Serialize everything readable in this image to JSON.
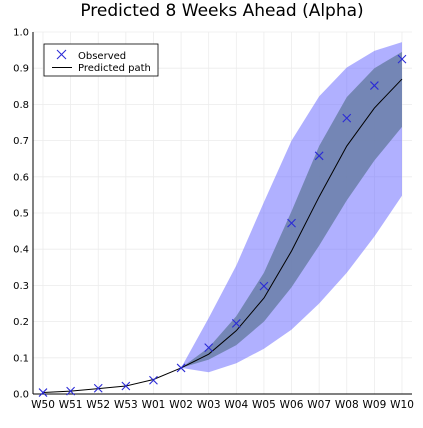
{
  "chart_data": {
    "type": "line",
    "title": "Predicted 8 Weeks Ahead (Alpha)",
    "xlabel": "",
    "ylabel": "",
    "categories": [
      "W50",
      "W51",
      "W52",
      "W53",
      "W01",
      "W02",
      "W03",
      "W04",
      "W05",
      "W06",
      "W07",
      "W08",
      "W09",
      "W10"
    ],
    "ylim": [
      0,
      1.0
    ],
    "yticks": [
      0.0,
      0.1,
      0.2,
      0.3,
      0.4,
      0.5,
      0.6,
      0.7,
      0.8,
      0.9,
      1.0
    ],
    "grid": true,
    "legend": "top-left",
    "legend_entries": [
      "Observed",
      "Predicted path"
    ],
    "series": [
      {
        "name": "Observed",
        "kind": "scatter",
        "marker": "x",
        "color": "#2b2bd6",
        "values": [
          0.004,
          0.008,
          0.016,
          0.022,
          0.038,
          0.072,
          0.128,
          0.195,
          0.298,
          0.472,
          0.658,
          0.762,
          0.852,
          0.925
        ]
      },
      {
        "name": "Predicted path",
        "kind": "line",
        "color": "#000000",
        "values": [
          0.004,
          0.008,
          0.015,
          0.022,
          0.04,
          0.072,
          0.11,
          0.175,
          0.265,
          0.395,
          0.545,
          0.685,
          0.79,
          0.87
        ]
      }
    ],
    "bands": [
      {
        "label": "outer",
        "color": "#7070ff",
        "start_index": 5,
        "lower": [
          0.072,
          0.06,
          0.085,
          0.125,
          0.178,
          0.25,
          0.335,
          0.435,
          0.548
        ],
        "upper": [
          0.072,
          0.21,
          0.355,
          0.53,
          0.7,
          0.822,
          0.902,
          0.948,
          0.972
        ]
      },
      {
        "label": "inner",
        "color": "#6a7fa8",
        "start_index": 5,
        "lower": [
          0.072,
          0.095,
          0.135,
          0.2,
          0.295,
          0.41,
          0.535,
          0.645,
          0.738
        ],
        "upper": [
          0.072,
          0.128,
          0.215,
          0.335,
          0.505,
          0.685,
          0.82,
          0.9,
          0.945
        ]
      }
    ]
  }
}
